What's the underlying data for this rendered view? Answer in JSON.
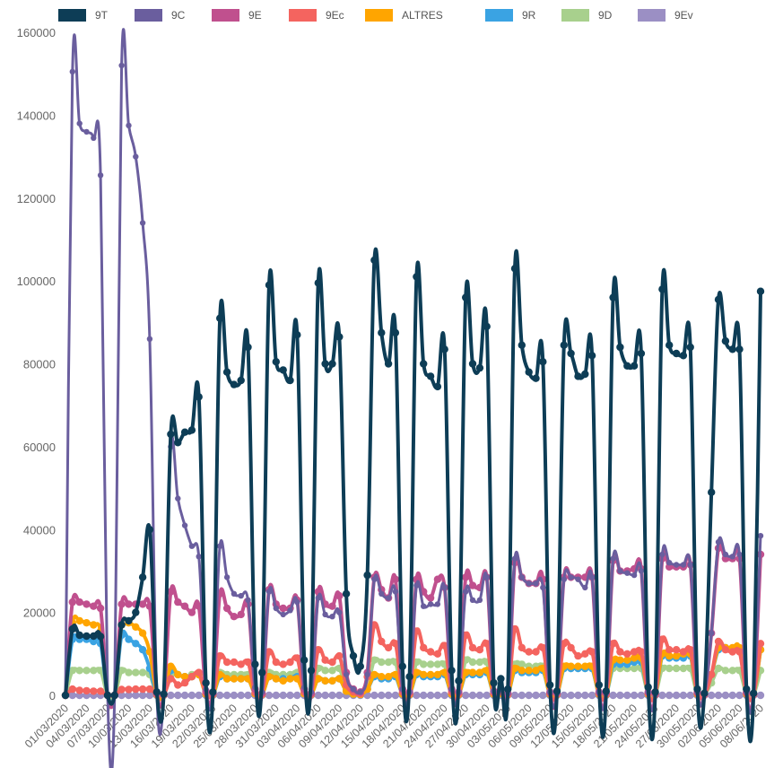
{
  "chart_data": {
    "type": "line",
    "title": "",
    "xlabel": "",
    "ylabel": "",
    "ylim": [
      0,
      160000
    ],
    "yticks": [
      0,
      20000,
      40000,
      60000,
      80000,
      100000,
      120000,
      140000,
      160000
    ],
    "grid": false,
    "legend_position": "top",
    "x_start": "01/03/2020",
    "x_end": "08/06/2020",
    "xtick_labels": [
      "01/03/2020",
      "04/03/2020",
      "07/03/2020",
      "10/03/2020",
      "13/03/2020",
      "16/03/2020",
      "19/03/2020",
      "22/03/2020",
      "25/03/2020",
      "28/03/2020",
      "31/03/2020",
      "03/04/2020",
      "06/04/2020",
      "09/04/2020",
      "12/04/2020",
      "15/04/2020",
      "18/04/2020",
      "21/04/2020",
      "24/04/2020",
      "27/04/2020",
      "30/04/2020",
      "03/05/2020",
      "06/05/2020",
      "09/05/2020",
      "12/05/2020",
      "15/05/2020",
      "18/05/2020",
      "21/05/2020",
      "24/05/2020",
      "27/05/2020",
      "30/05/2020",
      "02/06/2020",
      "05/06/2020",
      "08/06/2020"
    ],
    "x": [
      "01/03/2020",
      "02/03/2020",
      "03/03/2020",
      "04/03/2020",
      "05/03/2020",
      "06/03/2020",
      "07/03/2020",
      "08/03/2020",
      "09/03/2020",
      "10/03/2020",
      "11/03/2020",
      "12/03/2020",
      "13/03/2020",
      "14/03/2020",
      "15/03/2020",
      "16/03/2020",
      "17/03/2020",
      "18/03/2020",
      "19/03/2020",
      "20/03/2020",
      "21/03/2020",
      "22/03/2020",
      "23/03/2020",
      "24/03/2020",
      "25/03/2020",
      "26/03/2020",
      "27/03/2020",
      "28/03/2020",
      "29/03/2020",
      "30/03/2020",
      "31/03/2020",
      "01/04/2020",
      "02/04/2020",
      "03/04/2020",
      "04/04/2020",
      "05/04/2020",
      "06/04/2020",
      "07/04/2020",
      "08/04/2020",
      "09/04/2020",
      "10/04/2020",
      "11/04/2020",
      "12/04/2020",
      "13/04/2020",
      "14/04/2020",
      "15/04/2020",
      "16/04/2020",
      "17/04/2020",
      "18/04/2020",
      "19/04/2020",
      "20/04/2020",
      "21/04/2020",
      "22/04/2020",
      "23/04/2020",
      "24/04/2020",
      "25/04/2020",
      "26/04/2020",
      "27/04/2020",
      "28/04/2020",
      "29/04/2020",
      "30/04/2020",
      "01/05/2020",
      "02/05/2020",
      "03/05/2020",
      "04/05/2020",
      "05/05/2020",
      "06/05/2020",
      "07/05/2020",
      "08/05/2020",
      "09/05/2020",
      "10/05/2020",
      "11/05/2020",
      "12/05/2020",
      "13/05/2020",
      "14/05/2020",
      "15/05/2020",
      "16/05/2020",
      "17/05/2020",
      "18/05/2020",
      "19/05/2020",
      "20/05/2020",
      "21/05/2020",
      "22/05/2020",
      "23/05/2020",
      "24/05/2020",
      "25/05/2020",
      "26/05/2020",
      "27/05/2020",
      "28/05/2020",
      "29/05/2020",
      "30/05/2020",
      "31/05/2020",
      "01/06/2020",
      "02/06/2020",
      "03/06/2020",
      "04/06/2020",
      "05/06/2020",
      "06/06/2020",
      "07/06/2020",
      "08/06/2020"
    ],
    "series": [
      {
        "name": "9T",
        "color": "#0d3d56",
        "values": [
          0,
          16000,
          14500,
          14300,
          14300,
          14200,
          0,
          0,
          17000,
          18000,
          20000,
          28500,
          40000,
          800,
          300,
          63000,
          61000,
          63500,
          64000,
          72000,
          3000,
          800,
          91000,
          78000,
          75000,
          76000,
          84000,
          7500,
          5500,
          99000,
          80500,
          78500,
          76000,
          87000,
          8500,
          6000,
          99500,
          80000,
          80000,
          86500,
          24500,
          9500,
          7000,
          29000,
          105000,
          87500,
          80000,
          87500,
          7000,
          4500,
          101000,
          80000,
          77000,
          74500,
          83500,
          6000,
          3500,
          96000,
          80000,
          79000,
          89000,
          3000,
          4000,
          1500,
          103000,
          84500,
          78000,
          76500,
          80500,
          2500,
          1000,
          84500,
          82500,
          77000,
          77500,
          82000,
          2500,
          1000,
          96000,
          84000,
          79500,
          79500,
          82500,
          2000,
          800,
          98000,
          84500,
          82500,
          82000,
          84000,
          1500,
          500,
          49000,
          95500,
          85500,
          83500,
          83500,
          1500,
          500,
          97500
        ]
      },
      {
        "name": "9C",
        "color": "#6a5e9e",
        "values": [
          0,
          150500,
          138000,
          136000,
          134500,
          125500,
          0,
          0,
          152000,
          137500,
          130000,
          114000,
          86000,
          500,
          200,
          60000,
          47500,
          41000,
          36000,
          33500,
          1500,
          500,
          36000,
          28500,
          24500,
          24000,
          23000,
          2000,
          800,
          25000,
          21000,
          19500,
          20500,
          22500,
          2000,
          800,
          23500,
          19500,
          19000,
          20000,
          5000,
          1500,
          800,
          5000,
          28000,
          24500,
          23500,
          25000,
          1500,
          800,
          26500,
          21500,
          22000,
          22000,
          26000,
          1500,
          800,
          25000,
          23000,
          23000,
          28500,
          1000,
          1500,
          500,
          33000,
          28500,
          27000,
          27000,
          26000,
          800,
          500,
          28000,
          28500,
          28000,
          26000,
          28500,
          800,
          500,
          33000,
          30000,
          29500,
          29000,
          30000,
          800,
          300,
          34000,
          32000,
          31500,
          31500,
          31500,
          800,
          300,
          15000,
          37000,
          34000,
          33500,
          34000,
          800,
          300,
          38500
        ]
      },
      {
        "name": "9E",
        "color": "#c0508e",
        "values": [
          0,
          22500,
          22500,
          22000,
          21500,
          21000,
          0,
          0,
          22000,
          22000,
          22000,
          22000,
          21500,
          500,
          200,
          25000,
          22500,
          21500,
          20000,
          21500,
          1000,
          500,
          24500,
          21000,
          19000,
          19500,
          22000,
          1500,
          500,
          25500,
          22000,
          21000,
          21000,
          23000,
          1500,
          500,
          25000,
          22000,
          21500,
          24000,
          5500,
          1500,
          800,
          5500,
          28500,
          25500,
          23500,
          28000,
          1500,
          800,
          28000,
          25000,
          23500,
          28000,
          26000,
          1500,
          800,
          28500,
          26500,
          26000,
          28500,
          1000,
          1500,
          500,
          32000,
          28500,
          27000,
          27000,
          28000,
          800,
          500,
          28500,
          28500,
          28500,
          28500,
          28500,
          800,
          500,
          32500,
          30000,
          30000,
          30500,
          30500,
          800,
          300,
          33000,
          31000,
          31000,
          31000,
          31500,
          800,
          300,
          15000,
          35500,
          33000,
          33000,
          33000,
          800,
          300,
          34000
        ]
      },
      {
        "name": "9Ec",
        "color": "#f4645f",
        "values": [
          0,
          1500,
          1200,
          1100,
          1000,
          1000,
          0,
          0,
          1400,
          1400,
          1500,
          1500,
          1500,
          300,
          100,
          4000,
          2500,
          3000,
          4500,
          5500,
          600,
          300,
          9500,
          8000,
          8000,
          7500,
          8000,
          700,
          300,
          10500,
          8000,
          7500,
          8000,
          9000,
          800,
          300,
          11000,
          8500,
          8000,
          9500,
          2500,
          800,
          400,
          4500,
          17000,
          13000,
          11500,
          12500,
          800,
          400,
          15500,
          11500,
          10500,
          10000,
          12000,
          800,
          400,
          14500,
          11500,
          11000,
          12500,
          600,
          800,
          300,
          16000,
          11500,
          10500,
          10500,
          11500,
          500,
          300,
          12500,
          11500,
          9500,
          10000,
          10500,
          500,
          300,
          12500,
          10500,
          10000,
          10500,
          10500,
          500,
          200,
          13500,
          11000,
          11000,
          10500,
          11000,
          500,
          200,
          5000,
          13000,
          11000,
          10500,
          10500,
          500,
          200,
          12500
        ]
      },
      {
        "name": "ALTRES",
        "color": "#ffa500",
        "values": [
          0,
          17500,
          18000,
          17500,
          17000,
          15500,
          0,
          0,
          17000,
          17500,
          16500,
          15000,
          10500,
          200,
          100,
          7000,
          5000,
          4500,
          4500,
          5000,
          300,
          200,
          5000,
          4000,
          4000,
          4000,
          4000,
          400,
          200,
          4500,
          4000,
          3500,
          4000,
          4000,
          400,
          200,
          4000,
          3500,
          3500,
          4000,
          1000,
          300,
          200,
          1500,
          5000,
          4500,
          4500,
          5000,
          300,
          200,
          5500,
          5000,
          5000,
          5000,
          5500,
          300,
          200,
          5500,
          5500,
          5500,
          6000,
          300,
          400,
          200,
          6500,
          6000,
          6000,
          6000,
          6500,
          300,
          200,
          7000,
          7000,
          7000,
          7000,
          7000,
          300,
          200,
          8500,
          8500,
          8500,
          9000,
          9000,
          300,
          200,
          10000,
          9500,
          9500,
          10000,
          10000,
          300,
          200,
          5000,
          11500,
          11500,
          11500,
          11500,
          300,
          200,
          11000
        ]
      },
      {
        "name": "9R",
        "color": "#3aa3e3",
        "values": [
          0,
          13500,
          13500,
          13500,
          13000,
          12500,
          0,
          0,
          14500,
          13500,
          12500,
          11000,
          6500,
          200,
          100,
          6000,
          5000,
          4500,
          4500,
          5000,
          300,
          200,
          4500,
          4000,
          4000,
          4000,
          4000,
          400,
          200,
          4500,
          4000,
          4000,
          4000,
          4500,
          400,
          200,
          4000,
          3500,
          3500,
          4000,
          1000,
          300,
          200,
          1500,
          4500,
          4000,
          4000,
          4500,
          300,
          200,
          5000,
          4500,
          4500,
          4500,
          5000,
          300,
          200,
          5000,
          5000,
          5000,
          5500,
          300,
          400,
          200,
          6000,
          5500,
          5500,
          5500,
          6000,
          300,
          200,
          6500,
          6500,
          6500,
          6500,
          6500,
          300,
          200,
          7500,
          7500,
          7500,
          8000,
          8000,
          300,
          200,
          9500,
          9000,
          9000,
          9000,
          9500,
          300,
          200,
          5000,
          11000,
          11500,
          11000,
          11000,
          300,
          200,
          11000
        ]
      },
      {
        "name": "9D",
        "color": "#a8d08d",
        "values": [
          0,
          6000,
          6000,
          6000,
          6000,
          6000,
          0,
          0,
          6000,
          5500,
          5500,
          5500,
          5000,
          200,
          100,
          5000,
          5000,
          4500,
          5000,
          5000,
          300,
          200,
          5500,
          5000,
          5000,
          5000,
          5000,
          400,
          200,
          5500,
          5000,
          5000,
          5000,
          5500,
          400,
          200,
          6500,
          6000,
          6000,
          6500,
          1500,
          300,
          200,
          2000,
          8500,
          8000,
          8000,
          8000,
          300,
          200,
          8000,
          7500,
          7500,
          7500,
          7500,
          300,
          200,
          8500,
          8000,
          8000,
          8000,
          300,
          400,
          200,
          7500,
          7500,
          7000,
          7000,
          7000,
          300,
          200,
          6500,
          6500,
          6500,
          6500,
          6500,
          300,
          200,
          6500,
          6500,
          6500,
          6500,
          6500,
          300,
          200,
          6500,
          6500,
          6500,
          6500,
          6500,
          300,
          200,
          3000,
          6500,
          6000,
          6000,
          6000,
          300,
          200,
          6000
        ]
      },
      {
        "name": "9Ev",
        "color": "#9b8fc4",
        "values": [
          0,
          0,
          0,
          0,
          0,
          0,
          0,
          0,
          0,
          0,
          0,
          0,
          0,
          0,
          0,
          0,
          0,
          0,
          0,
          0,
          0,
          0,
          0,
          0,
          0,
          0,
          0,
          0,
          0,
          0,
          0,
          0,
          0,
          0,
          0,
          0,
          0,
          0,
          0,
          0,
          0,
          0,
          0,
          0,
          0,
          0,
          0,
          0,
          0,
          0,
          0,
          0,
          0,
          0,
          0,
          0,
          0,
          0,
          0,
          0,
          0,
          0,
          0,
          0,
          0,
          0,
          0,
          0,
          0,
          0,
          0,
          0,
          0,
          0,
          0,
          0,
          0,
          0,
          0,
          0,
          0,
          0,
          0,
          0,
          0,
          0,
          0,
          0,
          0,
          0,
          0,
          0,
          0,
          0,
          0,
          0,
          0,
          0,
          0,
          0
        ]
      }
    ]
  }
}
